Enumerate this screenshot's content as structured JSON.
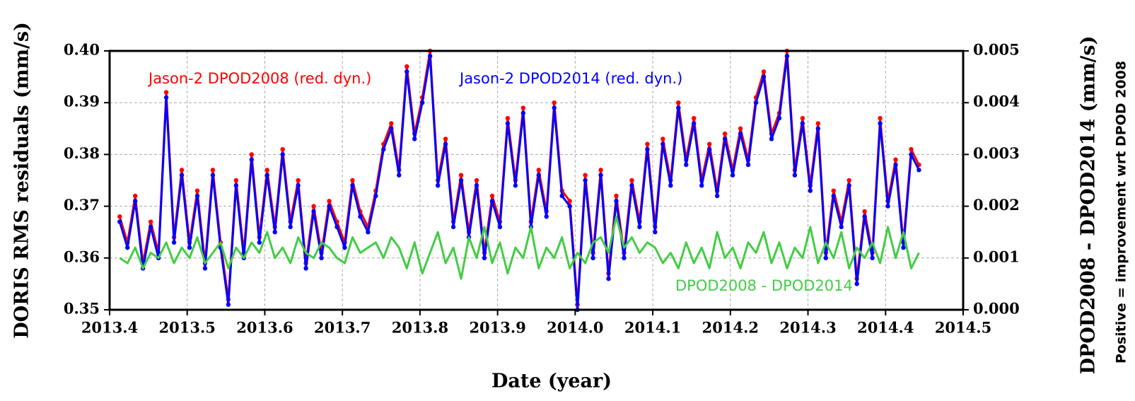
{
  "chart_data": {
    "type": "line",
    "xlabel": "Date (year)",
    "ylabel": "DORIS RMS residuals (mm/s)",
    "y2label": "DPOD2008 - DPOD2014 (mm/s)",
    "y2note": "Positive = improvement wrt DPOD 2008",
    "xlim": [
      2013.4,
      2014.5
    ],
    "xticks": [
      2013.4,
      2013.5,
      2013.6,
      2013.7,
      2013.8,
      2013.9,
      {
        "value": 2014.0,
        "label": "2014.0"
      },
      2014.1,
      2014.2,
      2014.3,
      2014.4,
      2014.5
    ],
    "ylim": [
      0.35,
      0.4
    ],
    "yticks": [
      0.35,
      0.36,
      0.37,
      0.38,
      0.39,
      {
        "value": 0.4,
        "label": "0.40"
      }
    ],
    "y2lim": [
      0,
      0.005
    ],
    "y2ticks": [
      {
        "value": 0,
        "label": "0.000"
      },
      {
        "value": 0.001,
        "label": "0.001"
      },
      {
        "value": 0.002,
        "label": "0.002"
      },
      {
        "value": 0.003,
        "label": "0.003"
      },
      {
        "value": 0.004,
        "label": "0.004"
      },
      {
        "value": 0.005,
        "label": "0.005"
      }
    ],
    "grid": true,
    "x": [
      2013.413,
      2013.423,
      2013.433,
      2013.443,
      2013.453,
      2013.463,
      2013.473,
      2013.483,
      2013.493,
      2013.503,
      2013.513,
      2013.523,
      2013.533,
      2013.543,
      2013.553,
      2013.563,
      2013.573,
      2013.583,
      2013.593,
      2013.603,
      2013.613,
      2013.623,
      2013.633,
      2013.643,
      2013.653,
      2013.663,
      2013.673,
      2013.683,
      2013.693,
      2013.703,
      2013.713,
      2013.723,
      2013.733,
      2013.743,
      2013.753,
      2013.763,
      2013.773,
      2013.783,
      2013.793,
      2013.803,
      2013.813,
      2013.823,
      2013.833,
      2013.843,
      2013.853,
      2013.863,
      2013.873,
      2013.883,
      2013.893,
      2013.903,
      2013.913,
      2013.923,
      2013.933,
      2013.943,
      2013.953,
      2013.963,
      2013.973,
      2013.983,
      2013.993,
      2014.003,
      2014.013,
      2014.023,
      2014.033,
      2014.043,
      2014.053,
      2014.063,
      2014.073,
      2014.083,
      2014.093,
      2014.103,
      2014.113,
      2014.123,
      2014.133,
      2014.143,
      2014.153,
      2014.163,
      2014.173,
      2014.183,
      2014.193,
      2014.203,
      2014.213,
      2014.223,
      2014.233,
      2014.243,
      2014.253,
      2014.263,
      2014.273,
      2014.283,
      2014.293,
      2014.303,
      2014.313,
      2014.323,
      2014.333,
      2014.343,
      2014.353,
      2014.363,
      2014.373,
      2014.383,
      2014.393,
      2014.403,
      2014.413,
      2014.423,
      2014.433,
      2014.443
    ],
    "series": [
      {
        "name": "Jason-2 DPOD2008 (red. dyn.)",
        "color": "#ff0000",
        "markers": true,
        "values": [
          0.368,
          0.363,
          0.372,
          0.359,
          0.367,
          0.361,
          0.392,
          0.364,
          0.377,
          0.363,
          0.373,
          0.359,
          0.377,
          0.363,
          0.352,
          0.375,
          0.361,
          0.38,
          0.364,
          0.377,
          0.366,
          0.381,
          0.367,
          0.375,
          0.359,
          0.37,
          0.361,
          0.371,
          0.367,
          0.363,
          0.375,
          0.369,
          0.366,
          0.373,
          0.382,
          0.386,
          0.377,
          0.397,
          0.384,
          0.391,
          0.4,
          0.375,
          0.383,
          0.367,
          0.376,
          0.365,
          0.375,
          0.361,
          0.372,
          0.367,
          0.387,
          0.375,
          0.389,
          0.367,
          0.377,
          0.369,
          0.39,
          0.373,
          0.371,
          0.351,
          0.376,
          0.361,
          0.377,
          0.357,
          0.372,
          0.361,
          0.375,
          0.367,
          0.382,
          0.366,
          0.383,
          0.375,
          0.39,
          0.379,
          0.387,
          0.375,
          0.382,
          0.373,
          0.384,
          0.377,
          0.385,
          0.379,
          0.391,
          0.396,
          0.384,
          0.388,
          0.4,
          0.377,
          0.387,
          0.374,
          0.386,
          0.361,
          0.373,
          0.367,
          0.375,
          0.356,
          0.369,
          0.361,
          0.387,
          0.371,
          0.379,
          0.363,
          0.381,
          0.378
        ]
      },
      {
        "name": "Jason-2 DPOD2014 (red. dyn.)",
        "color": "#0000ff",
        "markers": true,
        "values": [
          0.367,
          0.362,
          0.371,
          0.358,
          0.366,
          0.36,
          0.391,
          0.363,
          0.376,
          0.362,
          0.372,
          0.358,
          0.376,
          0.362,
          0.351,
          0.374,
          0.36,
          0.379,
          0.363,
          0.376,
          0.365,
          0.38,
          0.366,
          0.374,
          0.358,
          0.369,
          0.36,
          0.37,
          0.366,
          0.362,
          0.374,
          0.368,
          0.365,
          0.372,
          0.381,
          0.385,
          0.376,
          0.396,
          0.383,
          0.39,
          0.399,
          0.374,
          0.382,
          0.366,
          0.375,
          0.364,
          0.374,
          0.36,
          0.371,
          0.366,
          0.386,
          0.374,
          0.388,
          0.366,
          0.376,
          0.368,
          0.389,
          0.372,
          0.37,
          0.35,
          0.375,
          0.36,
          0.376,
          0.356,
          0.371,
          0.36,
          0.374,
          0.366,
          0.381,
          0.365,
          0.382,
          0.374,
          0.389,
          0.378,
          0.386,
          0.374,
          0.381,
          0.372,
          0.383,
          0.376,
          0.384,
          0.378,
          0.39,
          0.395,
          0.383,
          0.387,
          0.399,
          0.376,
          0.386,
          0.373,
          0.385,
          0.36,
          0.372,
          0.366,
          0.374,
          0.355,
          0.368,
          0.36,
          0.386,
          0.37,
          0.378,
          0.362,
          0.38,
          0.377
        ]
      },
      {
        "name": "DPOD2008 - DPOD2014",
        "color": "#44cc44",
        "axis": "y2",
        "markers": false,
        "values": [
          0.001,
          0.0009,
          0.0012,
          0.0008,
          0.0011,
          0.001,
          0.0013,
          0.0009,
          0.0012,
          0.001,
          0.0014,
          0.0009,
          0.0011,
          0.0013,
          0.0008,
          0.0012,
          0.001,
          0.0013,
          0.0011,
          0.0015,
          0.001,
          0.0012,
          0.0009,
          0.0014,
          0.0011,
          0.001,
          0.0013,
          0.0012,
          0.001,
          0.0009,
          0.0014,
          0.0011,
          0.0012,
          0.0013,
          0.001,
          0.0014,
          0.0012,
          0.0008,
          0.0013,
          0.0007,
          0.0011,
          0.0015,
          0.0009,
          0.0012,
          0.0006,
          0.0014,
          0.001,
          0.0016,
          0.0009,
          0.0013,
          0.0007,
          0.0012,
          0.001,
          0.0016,
          0.0008,
          0.0012,
          0.001,
          0.0014,
          0.0008,
          0.0011,
          0.0009,
          0.0013,
          0.0014,
          0.0011,
          0.0018,
          0.0012,
          0.0014,
          0.0011,
          0.0013,
          0.0012,
          0.0009,
          0.0011,
          0.0008,
          0.0013,
          0.0009,
          0.0012,
          0.0008,
          0.0015,
          0.001,
          0.0012,
          0.0008,
          0.0013,
          0.0011,
          0.0015,
          0.0009,
          0.0013,
          0.0008,
          0.0012,
          0.001,
          0.0016,
          0.0009,
          0.0013,
          0.001,
          0.0015,
          0.0008,
          0.0012,
          0.001,
          0.0013,
          0.0009,
          0.0016,
          0.001,
          0.0015,
          0.0008,
          0.0011
        ]
      }
    ]
  }
}
